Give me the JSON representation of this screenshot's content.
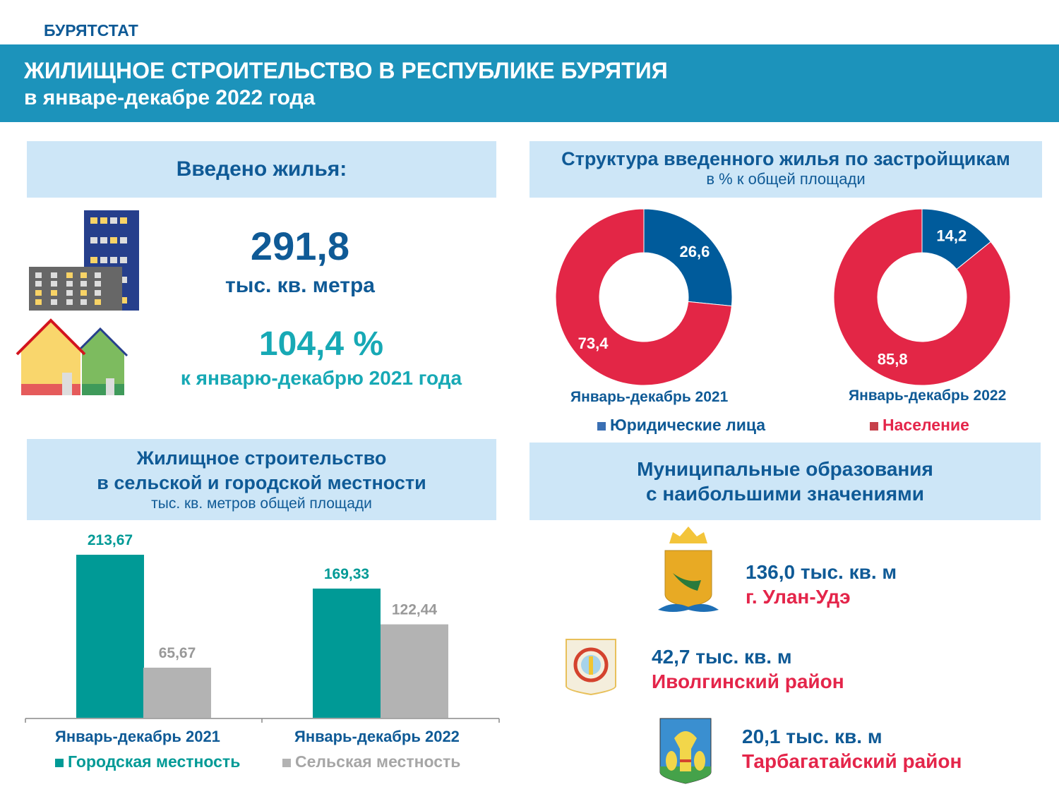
{
  "org": "БУРЯТСТАТ",
  "header": {
    "title": "ЖИЛИЩНОЕ СТРОИТЕЛЬСТВО В РЕСПУБЛИКЕ БУРЯТИЯ",
    "subtitle": "в январе-декабре 2022 года"
  },
  "introduced": {
    "heading": "Введено жилья:",
    "value": "291,8",
    "unit": "тыс. кв. метра",
    "percent": "104,4 %",
    "percent_note": "к январю-декабрю 2021 года"
  },
  "structure": {
    "heading": "Структура введенного жилья по застройщикам",
    "subheading": "в % к общей площади"
  },
  "rural_urban": {
    "heading1": "Жилищное строительство",
    "heading2": "в сельской и городской местности",
    "subheading": "тыс. кв. метров общей площади"
  },
  "municipal": {
    "heading1": "Муниципальные образования",
    "heading2": "с наибольшими значениями",
    "items": [
      {
        "value": "136,0 тыс. кв. м",
        "name": "г. Улан-Удэ"
      },
      {
        "value": "42,7 тыс. кв. м",
        "name": "Иволгинский район"
      },
      {
        "value": "20,1 тыс. кв. м",
        "name": "Тарбагатайский район"
      }
    ]
  },
  "colors": {
    "blue": "#005b9b",
    "red": "#e32646",
    "teal": "#009a96",
    "gray": "#b3b3b3"
  },
  "chart_data": [
    {
      "type": "pie",
      "title": "Январь-декабрь 2021",
      "labels": [
        "Юридические лица",
        "Население"
      ],
      "values": [
        26.6,
        73.4
      ],
      "value_labels": [
        "26,6",
        "73,4"
      ]
    },
    {
      "type": "pie",
      "title": "Январь-декабрь 2022",
      "labels": [
        "Юридические лица",
        "Население"
      ],
      "values": [
        14.2,
        85.8
      ],
      "value_labels": [
        "14,2",
        "85,8"
      ]
    },
    {
      "type": "bar",
      "categories": [
        "Январь-декабрь 2021",
        "Январь-декабрь 2022"
      ],
      "series": [
        {
          "name": "Городская местность",
          "values": [
            213.67,
            169.33
          ],
          "value_labels": [
            "213,67",
            "169,33"
          ]
        },
        {
          "name": "Сельская местность",
          "values": [
            65.67,
            122.44
          ],
          "value_labels": [
            "65,67",
            "122,44"
          ]
        }
      ],
      "ylim": [
        0,
        213.67
      ]
    }
  ]
}
